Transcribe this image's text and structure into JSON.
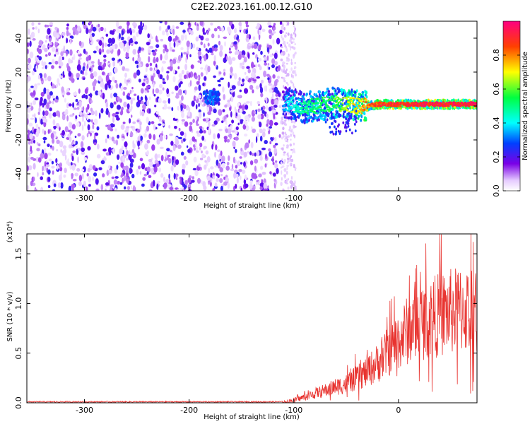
{
  "title": "C2E2.2023.161.00.12.G10",
  "chart_data": [
    {
      "type": "heatmap",
      "xlabel": "Height of straight line (km)",
      "ylabel": "Frequency (Hz)",
      "xlim": [
        -355,
        75
      ],
      "ylim": [
        -50,
        50
      ],
      "xticks": [
        -300,
        -200,
        -100,
        0
      ],
      "yticks": [
        -40,
        -20,
        0,
        20,
        40
      ],
      "colorbar": {
        "label": "Normalized spectral amplitude",
        "range": [
          0,
          1
        ],
        "ticks": [
          "0.0",
          "0.2",
          "0.4",
          "0.6",
          "0.8"
        ]
      },
      "noise_region": {
        "x": [
          -355,
          -112
        ],
        "y": [
          -50,
          50
        ],
        "level": 0.18
      },
      "signal_track": [
        {
          "x": -185,
          "y": 6,
          "amp": 0.3
        },
        {
          "x": -175,
          "y": 5,
          "amp": 0.32
        },
        {
          "x": -110,
          "y": 2,
          "amp": 0.35
        },
        {
          "x": -100,
          "y": 1,
          "amp": 0.45
        },
        {
          "x": -90,
          "y": -1,
          "amp": 0.5
        },
        {
          "x": -80,
          "y": 0,
          "amp": 0.55
        },
        {
          "x": -70,
          "y": 1,
          "amp": 0.55
        },
        {
          "x": -60,
          "y": 2,
          "amp": 0.6
        },
        {
          "x": -50,
          "y": 1,
          "amp": 0.65
        },
        {
          "x": -40,
          "y": 0,
          "amp": 0.75
        },
        {
          "x": -30,
          "y": 0,
          "amp": 0.85
        },
        {
          "x": -20,
          "y": 1,
          "amp": 0.9
        },
        {
          "x": -10,
          "y": 1,
          "amp": 0.95
        },
        {
          "x": 0,
          "y": 1,
          "amp": 0.95
        },
        {
          "x": 20,
          "y": 1,
          "amp": 0.97
        },
        {
          "x": 40,
          "y": 1,
          "amp": 0.98
        },
        {
          "x": 60,
          "y": 1,
          "amp": 0.98
        },
        {
          "x": 75,
          "y": 1,
          "amp": 0.98
        }
      ]
    },
    {
      "type": "line",
      "xlabel": "Height of straight line (km)",
      "ylabel": "SNR (10 * v/v)",
      "yscale_note": "(x10⁴)",
      "xlim": [
        -355,
        75
      ],
      "ylim": [
        0,
        1.7
      ],
      "xticks": [
        -300,
        -200,
        -100,
        0
      ],
      "yticks": [
        "0.0",
        "0.5",
        "1.0",
        "1.5"
      ],
      "color": "#e8332f",
      "series": [
        {
          "x": [
            -355,
            -300,
            -250,
            -200,
            -150,
            -110,
            -100,
            -90,
            -80,
            -70,
            -60,
            -50,
            -40,
            -30,
            -20,
            -10,
            0,
            10,
            20,
            30,
            40,
            50,
            60,
            70,
            75
          ],
          "values": [
            0.01,
            0.01,
            0.01,
            0.01,
            0.01,
            0.01,
            0.03,
            0.06,
            0.1,
            0.13,
            0.17,
            0.2,
            0.26,
            0.33,
            0.42,
            0.54,
            0.66,
            0.78,
            0.85,
            0.9,
            0.93,
            0.96,
            0.98,
            0.98,
            1.0
          ]
        }
      ]
    }
  ]
}
